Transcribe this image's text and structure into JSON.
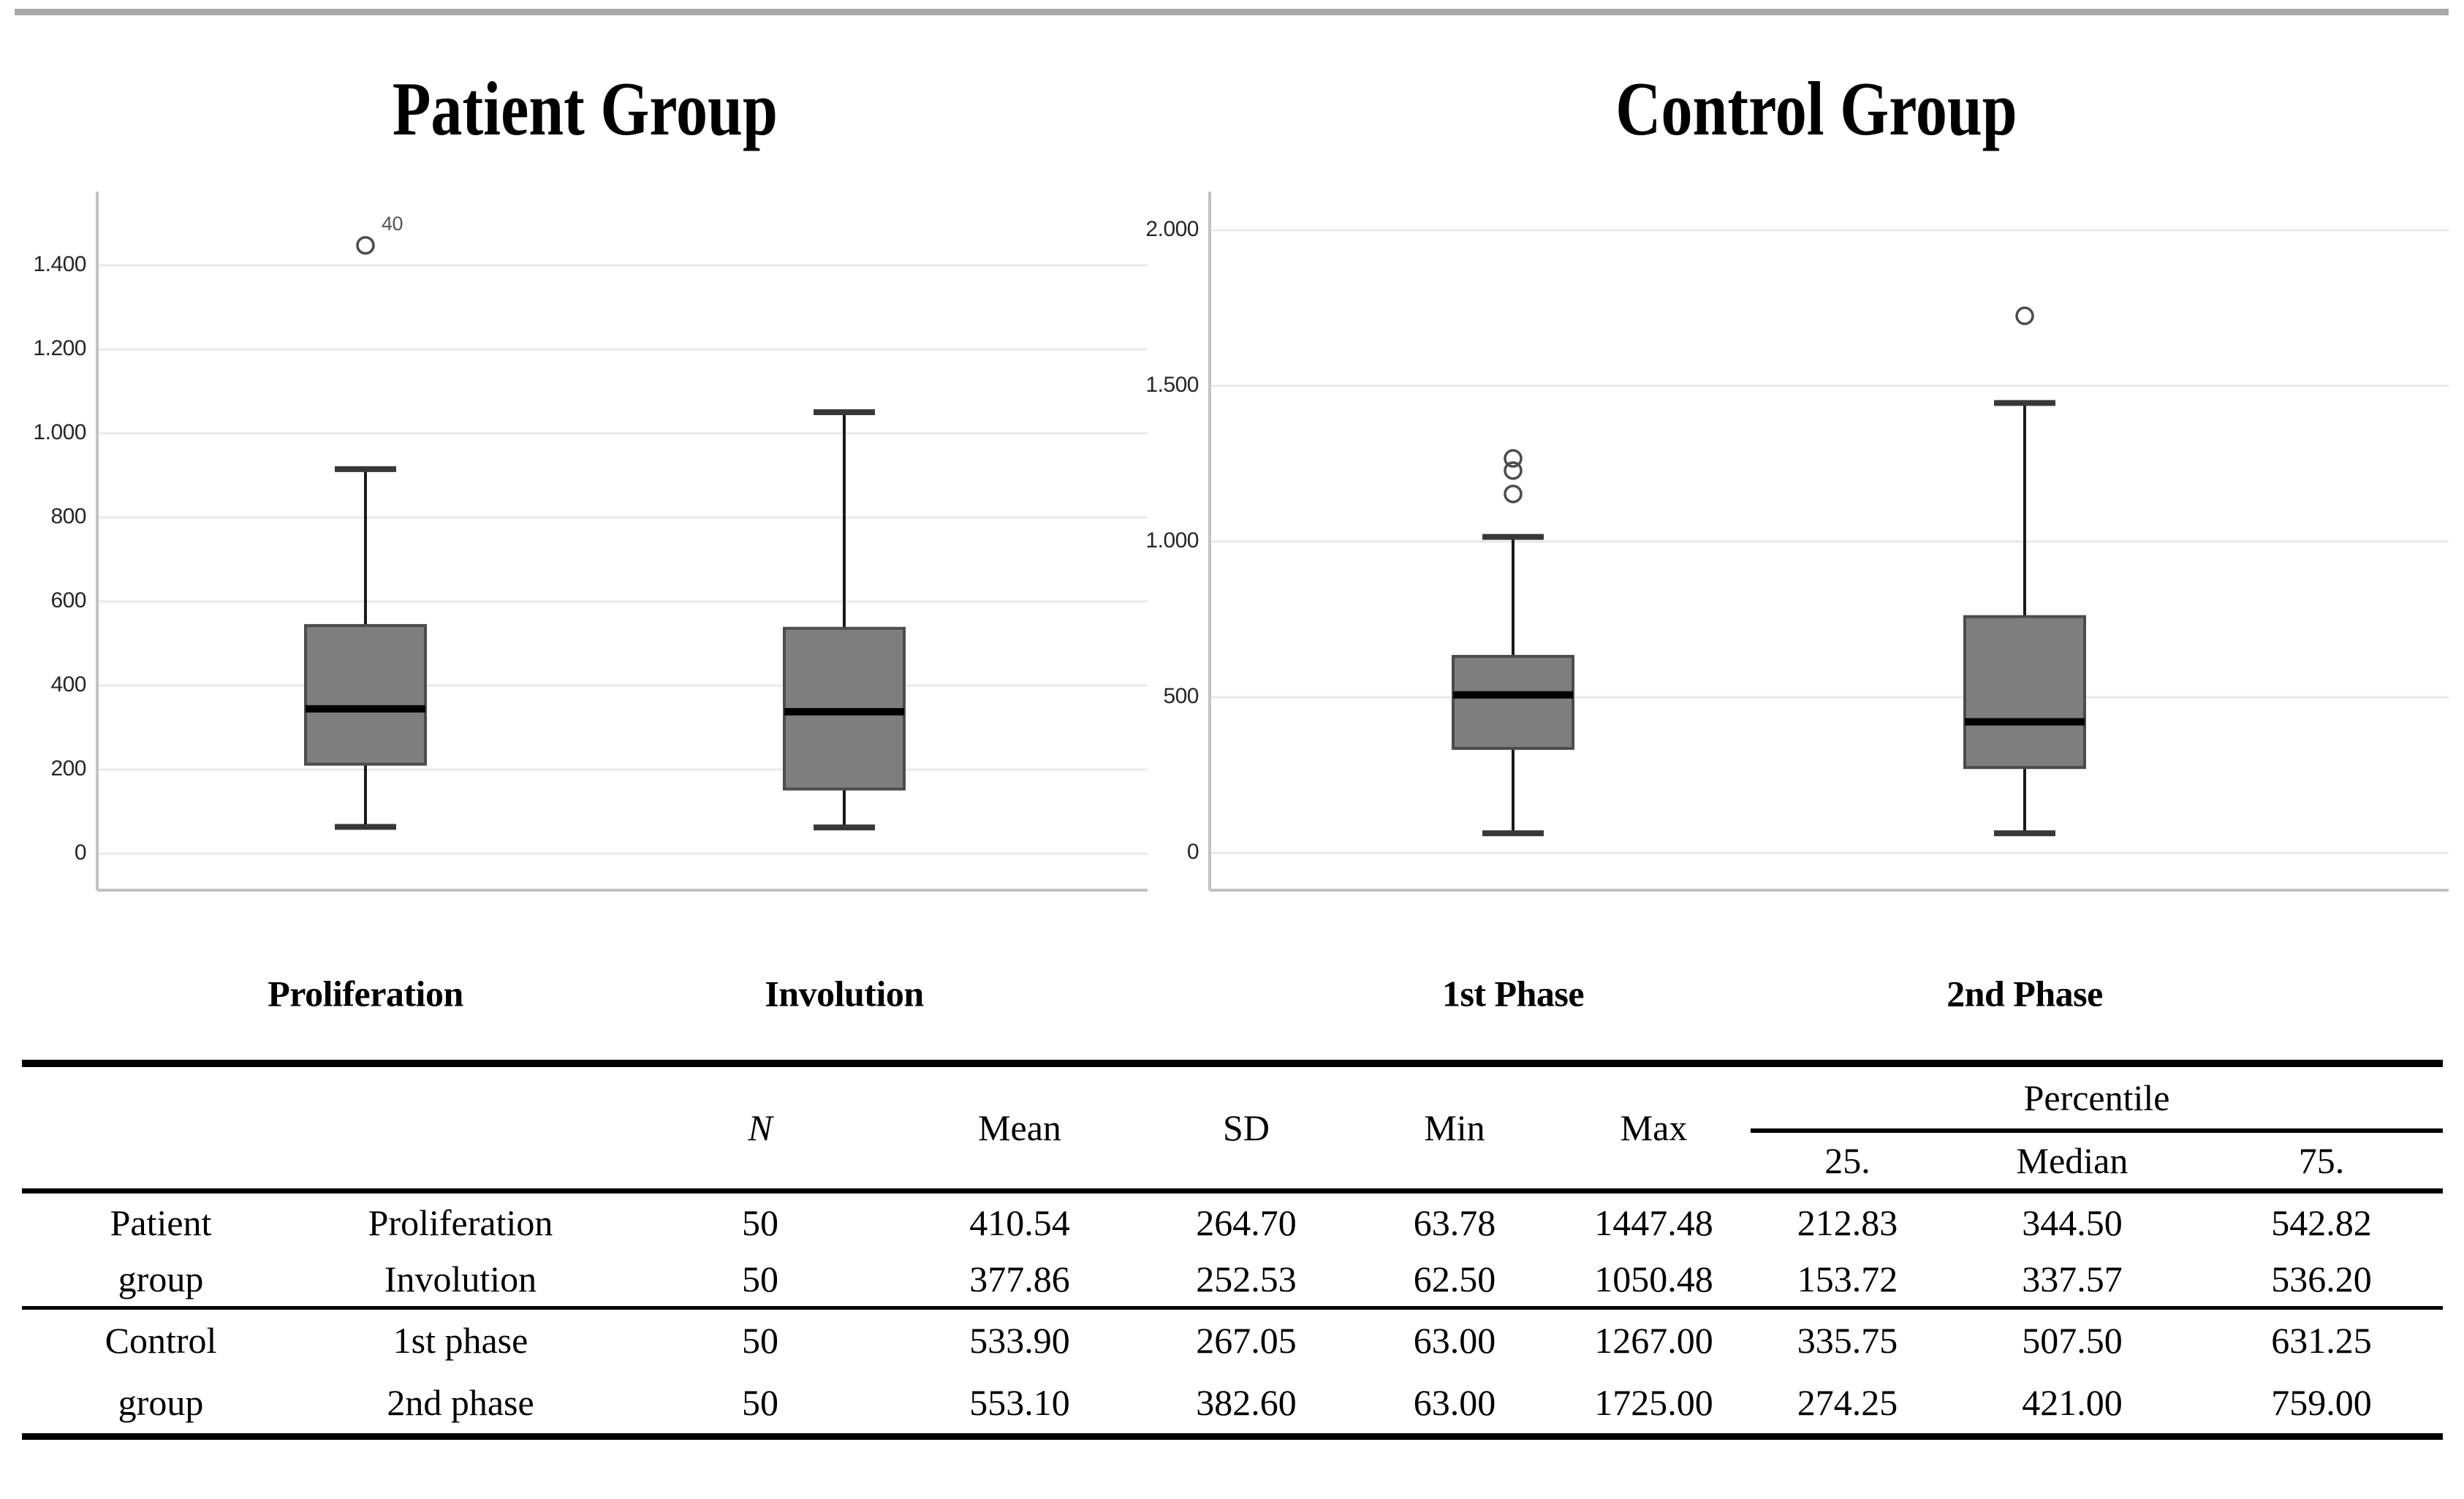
{
  "figure": {
    "background": "#ffffff",
    "divider_color": "#a9a9a9"
  },
  "chart_data": [
    {
      "type": "box",
      "title": "Patient Group",
      "categories": [
        "Proliferation",
        "Involution"
      ],
      "ylabel": "",
      "ylim": [
        0,
        1575
      ],
      "grid": "horizontal",
      "y_ticks": [
        {
          "label": "1.400",
          "value": 1400
        },
        {
          "label": "1.200",
          "value": 1200
        },
        {
          "label": "1.000",
          "value": 1000
        },
        {
          "label": "800",
          "value": 800
        },
        {
          "label": "600",
          "value": 600
        },
        {
          "label": "400",
          "value": 400
        },
        {
          "label": "200",
          "value": 200
        },
        {
          "label": "0",
          "value": 0
        }
      ],
      "series": [
        {
          "category": "Proliferation",
          "n": 50,
          "min": 63.78,
          "max": 1447.48,
          "q1": 212.83,
          "median": 344.5,
          "q3": 542.82,
          "whisker_low": 63.78,
          "whisker_high": 915,
          "outliers": [
            {
              "value": 1447.48,
              "label": "40"
            }
          ]
        },
        {
          "category": "Involution",
          "n": 50,
          "min": 62.5,
          "max": 1050.48,
          "q1": 153.72,
          "median": 337.57,
          "q3": 536.2,
          "whisker_low": 62.5,
          "whisker_high": 1050.48,
          "outliers": []
        }
      ]
    },
    {
      "type": "box",
      "title": "Control Group",
      "categories": [
        "1st Phase",
        "2nd Phase"
      ],
      "ylabel": "",
      "ylim": [
        0,
        2124
      ],
      "grid": "horizontal",
      "y_ticks": [
        {
          "label": "2.000",
          "value": 2000
        },
        {
          "label": "1.500",
          "value": 1500
        },
        {
          "label": "1.000",
          "value": 1000
        },
        {
          "label": "500",
          "value": 500
        },
        {
          "label": "0",
          "value": 0
        }
      ],
      "series": [
        {
          "category": "1st Phase",
          "n": 50,
          "min": 63.0,
          "max": 1267.0,
          "q1": 335.75,
          "median": 507.5,
          "q3": 631.25,
          "whisker_low": 63.0,
          "whisker_high": 1015,
          "outliers": [
            {
              "value": 1267
            },
            {
              "value": 1228
            },
            {
              "value": 1153
            }
          ]
        },
        {
          "category": "2nd Phase",
          "n": 50,
          "min": 63.0,
          "max": 1725.0,
          "q1": 274.25,
          "median": 421.0,
          "q3": 759.0,
          "whisker_low": 63.0,
          "whisker_high": 1445,
          "outliers": [
            {
              "value": 1725
            }
          ]
        }
      ]
    }
  ],
  "chart_style": {
    "box_fill": "#7e7e7e",
    "box_stroke": "#4c4c4c",
    "median_color": "#000000",
    "whisker_color": "#1a1a1a",
    "cap_color": "#383838",
    "gridline_color": "#e9e9e9",
    "axis_color": "#c2c2c2",
    "tick_text_color": "#262626",
    "outlier_stroke": "#4c4c4c",
    "outlier_label_color": "#555555"
  },
  "table": {
    "headers": {
      "n": "N",
      "mean": "Mean",
      "sd": "SD",
      "min": "Min",
      "max": "Max",
      "percentile": "Percentile",
      "p25": "25.",
      "median": "Median",
      "p75": "75."
    },
    "rows": [
      {
        "group": "Patient",
        "phase": "Proliferation",
        "n": "50",
        "mean": "410.54",
        "sd": "264.70",
        "min": "63.78",
        "max": "1447.48",
        "p25": "212.83",
        "median": "344.50",
        "p75": "542.82"
      },
      {
        "group": "group",
        "phase": "Involution",
        "n": "50",
        "mean": "377.86",
        "sd": "252.53",
        "min": "62.50",
        "max": "1050.48",
        "p25": "153.72",
        "median": "337.57",
        "p75": "536.20"
      },
      {
        "group": "Control",
        "phase": "1st phase",
        "n": "50",
        "mean": "533.90",
        "sd": "267.05",
        "min": "63.00",
        "max": "1267.00",
        "p25": "335.75",
        "median": "507.50",
        "p75": "631.25"
      },
      {
        "group": "group",
        "phase": "2nd phase",
        "n": "50",
        "mean": "553.10",
        "sd": "382.60",
        "min": "63.00",
        "max": "1725.00",
        "p25": "274.25",
        "median": "421.00",
        "p75": "759.00"
      }
    ]
  }
}
